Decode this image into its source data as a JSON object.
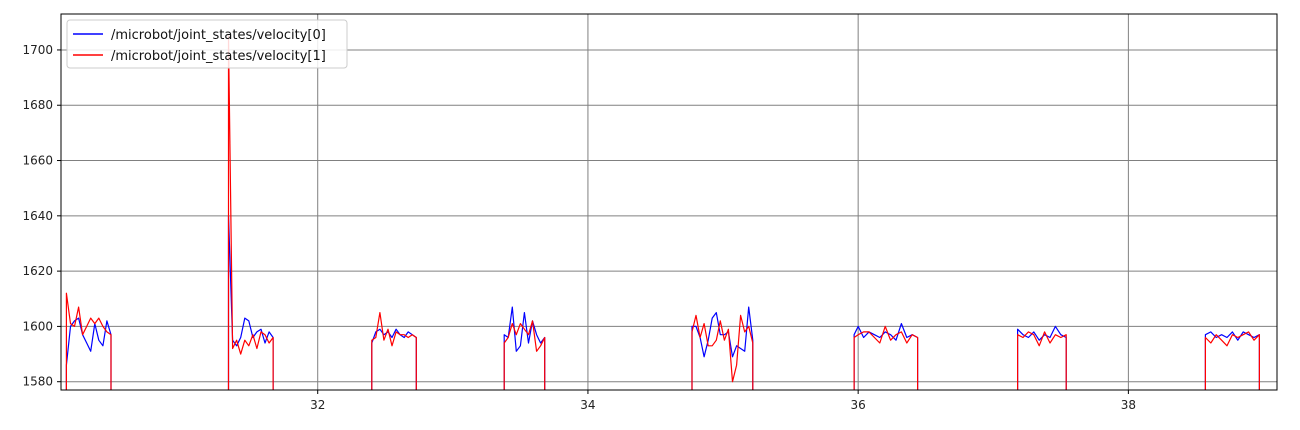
{
  "chart_data": {
    "type": "line",
    "xlim": [
      30.1,
      39.1
    ],
    "ylim": [
      1577,
      1713
    ],
    "x_ticks": [
      32,
      34,
      36,
      38
    ],
    "y_ticks": [
      1580,
      1600,
      1620,
      1640,
      1660,
      1680,
      1700
    ],
    "grid": true,
    "legend_position": "top-left",
    "series": [
      {
        "name": "/microbot/joint_states/velocity[0]",
        "color": "#0000ff",
        "segments": [
          [
            [
              30.14,
              1577
            ],
            [
              30.14,
              1586
            ],
            [
              30.17,
              1600
            ],
            [
              30.2,
              1602
            ],
            [
              30.23,
              1603
            ],
            [
              30.26,
              1597
            ],
            [
              30.29,
              1594
            ],
            [
              30.32,
              1591
            ],
            [
              30.35,
              1601
            ],
            [
              30.38,
              1595
            ],
            [
              30.41,
              1593
            ],
            [
              30.44,
              1602
            ],
            [
              30.47,
              1597
            ],
            [
              30.47,
              1577
            ]
          ],
          [
            [
              31.34,
              1577
            ],
            [
              31.34,
              1640
            ],
            [
              31.37,
              1595
            ],
            [
              31.4,
              1593
            ],
            [
              31.43,
              1596
            ],
            [
              31.46,
              1603
            ],
            [
              31.49,
              1602
            ],
            [
              31.52,
              1596
            ],
            [
              31.55,
              1598
            ],
            [
              31.58,
              1599
            ],
            [
              31.61,
              1594
            ],
            [
              31.64,
              1598
            ],
            [
              31.67,
              1596
            ],
            [
              31.67,
              1577
            ]
          ],
          [
            [
              32.4,
              1577
            ],
            [
              32.4,
              1594
            ],
            [
              32.43,
              1598
            ],
            [
              32.46,
              1599
            ],
            [
              32.49,
              1597
            ],
            [
              32.52,
              1598
            ],
            [
              32.55,
              1596
            ],
            [
              32.58,
              1599
            ],
            [
              32.61,
              1597
            ],
            [
              32.64,
              1596
            ],
            [
              32.67,
              1598
            ],
            [
              32.7,
              1597
            ],
            [
              32.73,
              1596
            ],
            [
              32.73,
              1577
            ]
          ],
          [
            [
              33.38,
              1577
            ],
            [
              33.38,
              1597
            ],
            [
              33.41,
              1596
            ],
            [
              33.44,
              1607
            ],
            [
              33.47,
              1591
            ],
            [
              33.5,
              1593
            ],
            [
              33.53,
              1605
            ],
            [
              33.56,
              1594
            ],
            [
              33.59,
              1602
            ],
            [
              33.62,
              1597
            ],
            [
              33.65,
              1594
            ],
            [
              33.68,
              1596
            ],
            [
              33.68,
              1577
            ]
          ],
          [
            [
              34.77,
              1577
            ],
            [
              34.77,
              1600
            ],
            [
              34.8,
              1600
            ],
            [
              34.83,
              1596
            ],
            [
              34.86,
              1589
            ],
            [
              34.89,
              1595
            ],
            [
              34.92,
              1603
            ],
            [
              34.95,
              1605
            ],
            [
              34.98,
              1597
            ],
            [
              35.01,
              1597
            ],
            [
              35.04,
              1598
            ],
            [
              35.07,
              1589
            ],
            [
              35.1,
              1593
            ],
            [
              35.13,
              1592
            ],
            [
              35.16,
              1591
            ],
            [
              35.19,
              1607
            ],
            [
              35.22,
              1595
            ],
            [
              35.22,
              1577
            ]
          ],
          [
            [
              35.97,
              1577
            ],
            [
              35.97,
              1597
            ],
            [
              36.0,
              1600
            ],
            [
              36.04,
              1596
            ],
            [
              36.08,
              1598
            ],
            [
              36.12,
              1597
            ],
            [
              36.16,
              1596
            ],
            [
              36.2,
              1598
            ],
            [
              36.24,
              1597
            ],
            [
              36.28,
              1595
            ],
            [
              36.32,
              1601
            ],
            [
              36.36,
              1596
            ],
            [
              36.4,
              1597
            ],
            [
              36.44,
              1596
            ],
            [
              36.44,
              1577
            ]
          ],
          [
            [
              37.18,
              1577
            ],
            [
              37.18,
              1599
            ],
            [
              37.22,
              1597
            ],
            [
              37.26,
              1596
            ],
            [
              37.3,
              1598
            ],
            [
              37.34,
              1595
            ],
            [
              37.38,
              1597
            ],
            [
              37.42,
              1596
            ],
            [
              37.46,
              1600
            ],
            [
              37.5,
              1597
            ],
            [
              37.54,
              1596
            ],
            [
              37.54,
              1577
            ]
          ],
          [
            [
              38.57,
              1577
            ],
            [
              38.57,
              1597
            ],
            [
              38.61,
              1598
            ],
            [
              38.65,
              1596
            ],
            [
              38.69,
              1597
            ],
            [
              38.73,
              1596
            ],
            [
              38.77,
              1598
            ],
            [
              38.81,
              1595
            ],
            [
              38.85,
              1598
            ],
            [
              38.89,
              1597
            ],
            [
              38.93,
              1596
            ],
            [
              38.97,
              1597
            ],
            [
              38.97,
              1577
            ]
          ]
        ]
      },
      {
        "name": "/microbot/joint_states/velocity[1]",
        "color": "#ff0000",
        "segments": [
          [
            [
              30.14,
              1577
            ],
            [
              30.14,
              1612
            ],
            [
              30.17,
              1601
            ],
            [
              30.2,
              1600
            ],
            [
              30.23,
              1607
            ],
            [
              30.26,
              1597
            ],
            [
              30.29,
              1600
            ],
            [
              30.32,
              1603
            ],
            [
              30.35,
              1601
            ],
            [
              30.38,
              1603
            ],
            [
              30.41,
              1600
            ],
            [
              30.44,
              1598
            ],
            [
              30.47,
              1597
            ],
            [
              30.47,
              1577
            ]
          ],
          [
            [
              31.34,
              1577
            ],
            [
              31.34,
              1705
            ],
            [
              31.37,
              1592
            ],
            [
              31.4,
              1595
            ],
            [
              31.43,
              1590
            ],
            [
              31.46,
              1595
            ],
            [
              31.49,
              1593
            ],
            [
              31.52,
              1597
            ],
            [
              31.55,
              1592
            ],
            [
              31.58,
              1598
            ],
            [
              31.61,
              1597
            ],
            [
              31.64,
              1594
            ],
            [
              31.67,
              1596
            ],
            [
              31.67,
              1577
            ]
          ],
          [
            [
              32.4,
              1577
            ],
            [
              32.4,
              1595
            ],
            [
              32.43,
              1596
            ],
            [
              32.46,
              1605
            ],
            [
              32.49,
              1595
            ],
            [
              32.52,
              1599
            ],
            [
              32.55,
              1593
            ],
            [
              32.58,
              1598
            ],
            [
              32.61,
              1597
            ],
            [
              32.64,
              1597
            ],
            [
              32.67,
              1596
            ],
            [
              32.7,
              1597
            ],
            [
              32.73,
              1596
            ],
            [
              32.73,
              1577
            ]
          ],
          [
            [
              33.38,
              1577
            ],
            [
              33.38,
              1594
            ],
            [
              33.41,
              1596
            ],
            [
              33.44,
              1601
            ],
            [
              33.47,
              1597
            ],
            [
              33.5,
              1601
            ],
            [
              33.53,
              1599
            ],
            [
              33.56,
              1597
            ],
            [
              33.59,
              1602
            ],
            [
              33.62,
              1591
            ],
            [
              33.65,
              1593
            ],
            [
              33.68,
              1596
            ],
            [
              33.68,
              1577
            ]
          ],
          [
            [
              34.77,
              1577
            ],
            [
              34.77,
              1598
            ],
            [
              34.8,
              1604
            ],
            [
              34.83,
              1596
            ],
            [
              34.86,
              1601
            ],
            [
              34.89,
              1593
            ],
            [
              34.92,
              1593
            ],
            [
              34.95,
              1595
            ],
            [
              34.98,
              1602
            ],
            [
              35.01,
              1595
            ],
            [
              35.04,
              1599
            ],
            [
              35.07,
              1580
            ],
            [
              35.1,
              1586
            ],
            [
              35.13,
              1604
            ],
            [
              35.16,
              1598
            ],
            [
              35.19,
              1600
            ],
            [
              35.22,
              1594
            ],
            [
              35.22,
              1577
            ]
          ],
          [
            [
              35.97,
              1577
            ],
            [
              35.97,
              1596
            ],
            [
              36.0,
              1597
            ],
            [
              36.04,
              1598
            ],
            [
              36.08,
              1598
            ],
            [
              36.12,
              1596
            ],
            [
              36.16,
              1594
            ],
            [
              36.2,
              1600
            ],
            [
              36.24,
              1595
            ],
            [
              36.28,
              1597
            ],
            [
              36.32,
              1598
            ],
            [
              36.36,
              1594
            ],
            [
              36.4,
              1597
            ],
            [
              36.44,
              1596
            ],
            [
              36.44,
              1577
            ]
          ],
          [
            [
              37.18,
              1577
            ],
            [
              37.18,
              1597
            ],
            [
              37.22,
              1596
            ],
            [
              37.26,
              1598
            ],
            [
              37.3,
              1597
            ],
            [
              37.34,
              1593
            ],
            [
              37.38,
              1598
            ],
            [
              37.42,
              1594
            ],
            [
              37.46,
              1597
            ],
            [
              37.5,
              1596
            ],
            [
              37.54,
              1597
            ],
            [
              37.54,
              1577
            ]
          ],
          [
            [
              38.57,
              1577
            ],
            [
              38.57,
              1596
            ],
            [
              38.61,
              1594
            ],
            [
              38.65,
              1597
            ],
            [
              38.69,
              1595
            ],
            [
              38.73,
              1593
            ],
            [
              38.77,
              1597
            ],
            [
              38.81,
              1596
            ],
            [
              38.85,
              1597
            ],
            [
              38.89,
              1598
            ],
            [
              38.93,
              1595
            ],
            [
              38.97,
              1597
            ],
            [
              38.97,
              1577
            ]
          ]
        ]
      }
    ]
  }
}
